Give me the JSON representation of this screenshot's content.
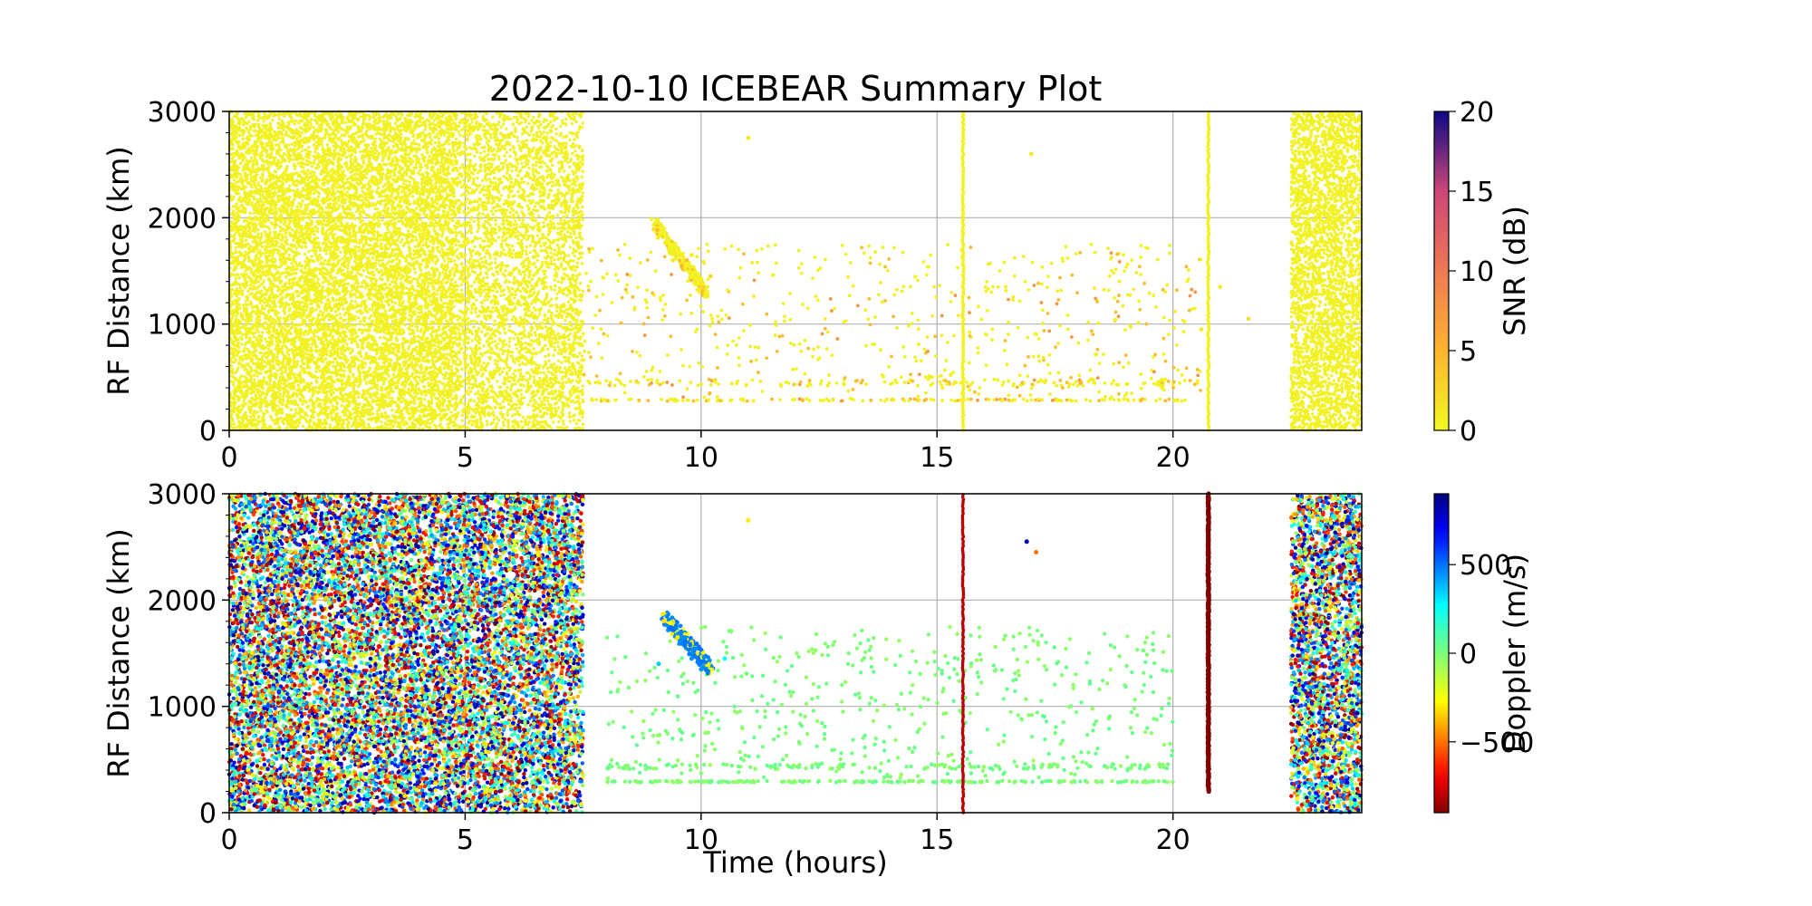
{
  "title": "2022-10-10 ICEBEAR Summary Plot",
  "colors": {
    "grid": "#b0b0b0",
    "axis": "#000000",
    "background": "#ffffff"
  },
  "chart_data": [
    {
      "type": "scatter",
      "title": "2022-10-10 ICEBEAR Summary Plot",
      "xlabel": "",
      "ylabel": "RF Distance (km)",
      "xlim": [
        0,
        24
      ],
      "ylim": [
        0,
        3000
      ],
      "xticks": [
        0,
        5,
        10,
        15,
        20
      ],
      "yticks": [
        0,
        1000,
        2000,
        3000
      ],
      "grid": true,
      "color_by": "snr",
      "colorbar": {
        "label": "SNR (dB)",
        "min": 0,
        "max": 20,
        "ticks": [
          0,
          5,
          10,
          15,
          20
        ],
        "colormap": "plasma_r"
      },
      "series": [
        {
          "dense_regions": [
            {
              "x": [
                0,
                7.5
              ],
              "y": [
                0,
                3000
              ],
              "density": "very high",
              "snr": 0.5
            },
            {
              "x": [
                22.5,
                24
              ],
              "y": [
                0,
                3000
              ],
              "density": "very high",
              "snr": 0.5
            }
          ],
          "points": [
            {
              "x": 9.1,
              "y": 1950,
              "snr": 1
            },
            {
              "x": 9.4,
              "y": 1600,
              "snr": 1
            },
            {
              "x": 9.8,
              "y": 1650,
              "snr": 1
            },
            {
              "x": 10.0,
              "y": 1350,
              "snr": 2
            },
            {
              "x": 10.2,
              "y": 1450,
              "snr": 2
            },
            {
              "x": 11.0,
              "y": 2750,
              "snr": 1
            },
            {
              "x": 17.0,
              "y": 2600,
              "snr": 1
            },
            {
              "x": 20.6,
              "y": 950,
              "snr": 1
            },
            {
              "x": 21.0,
              "y": 1350,
              "snr": 1
            },
            {
              "x": 21.6,
              "y": 1050,
              "snr": 2
            }
          ],
          "vertical_streaks": [
            {
              "x": 15.55,
              "y": [
                0,
                3000
              ],
              "snr": 1
            },
            {
              "x": 20.75,
              "y": [
                0,
                3000
              ],
              "snr": 1
            }
          ]
        }
      ]
    },
    {
      "type": "scatter",
      "title": "",
      "xlabel": "Time (hours)",
      "ylabel": "RF Distance (km)",
      "xlim": [
        0,
        24
      ],
      "ylim": [
        0,
        3000
      ],
      "xticks": [
        0,
        5,
        10,
        15,
        20
      ],
      "yticks": [
        0,
        1000,
        2000,
        3000
      ],
      "grid": true,
      "color_by": "doppler",
      "colorbar": {
        "label": "Doppler (m/s)",
        "min": -900,
        "max": 900,
        "ticks": [
          -500,
          0,
          500
        ],
        "tick_labels": [
          "−500",
          "0",
          "500"
        ],
        "colormap": "jet_r"
      },
      "series": [
        {
          "dense_regions": [
            {
              "x": [
                0,
                7.5
              ],
              "y": [
                0,
                3000
              ],
              "density": "very high",
              "doppler": "mixed"
            },
            {
              "x": [
                22.5,
                24
              ],
              "y": [
                0,
                3000
              ],
              "density": "very high",
              "doppler": "mixed"
            }
          ],
          "points": [
            {
              "x": 9.1,
              "y": 1400,
              "doppler": 350
            },
            {
              "x": 9.5,
              "y": 1650,
              "doppler": -300
            },
            {
              "x": 9.8,
              "y": 1450,
              "doppler": 450
            },
            {
              "x": 10.0,
              "y": 1350,
              "doppler": 450
            },
            {
              "x": 10.5,
              "y": 1450,
              "doppler": 250
            },
            {
              "x": 11.0,
              "y": 2750,
              "doppler": -300
            },
            {
              "x": 16.9,
              "y": 2550,
              "doppler": 800
            },
            {
              "x": 17.1,
              "y": 2450,
              "doppler": -500
            }
          ],
          "vertical_streaks": [
            {
              "x": 15.55,
              "y": [
                0,
                3000
              ],
              "doppler": -800
            },
            {
              "x": 20.75,
              "y": [
                200,
                3000
              ],
              "doppler": -900
            }
          ]
        }
      ]
    }
  ]
}
